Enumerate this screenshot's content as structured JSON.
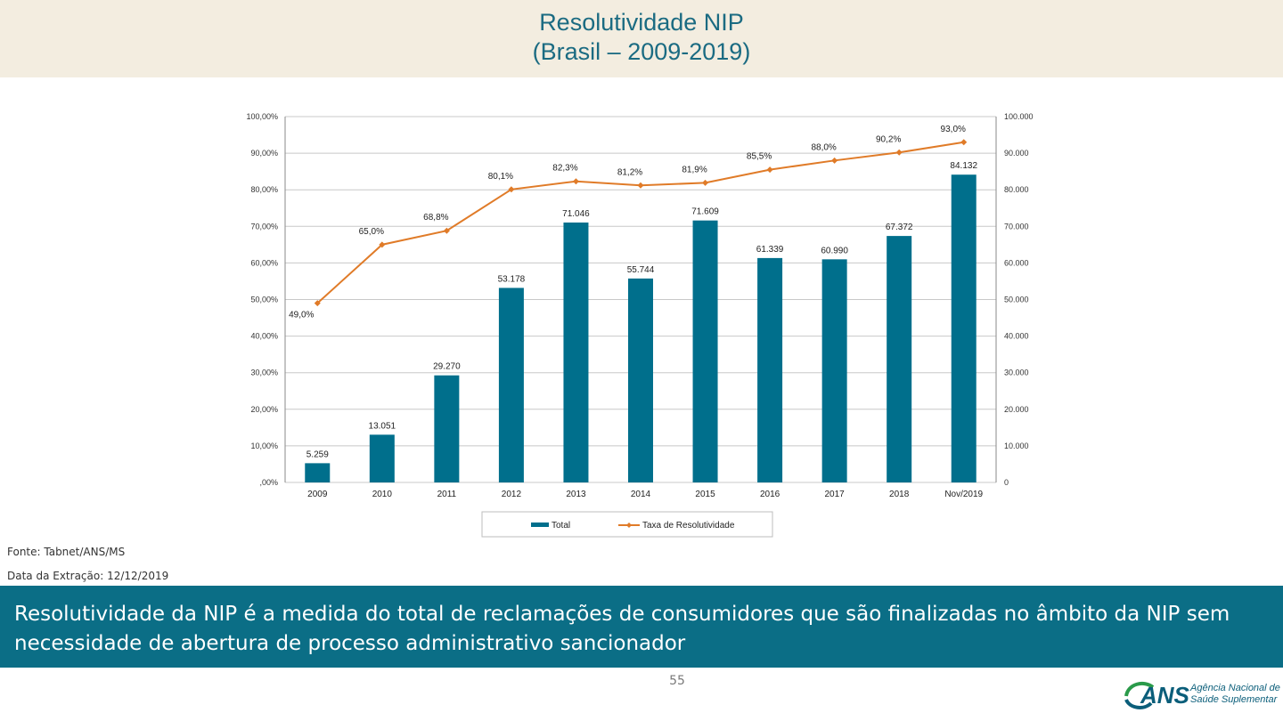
{
  "header": {
    "title_line1": "Resolutividade NIP",
    "title_line2": "(Brasil – 2009-2019)"
  },
  "chart_data": {
    "type": "bar+line",
    "categories": [
      "2009",
      "2010",
      "2011",
      "2012",
      "2013",
      "2014",
      "2015",
      "2016",
      "2017",
      "2018",
      "Nov/2019"
    ],
    "series": [
      {
        "name": "Total",
        "kind": "bar",
        "axis": "right",
        "values": [
          5259,
          13051,
          29270,
          53178,
          71046,
          55744,
          71609,
          61339,
          60990,
          67372,
          84132
        ],
        "labels": [
          "5.259",
          "13.051",
          "29.270",
          "53.178",
          "71.046",
          "55.744",
          "71.609",
          "61.339",
          "60.990",
          "67.372",
          "84.132"
        ]
      },
      {
        "name": "Taxa de Resolutividade",
        "kind": "line",
        "axis": "left",
        "values": [
          49.0,
          65.0,
          68.8,
          80.1,
          82.3,
          81.2,
          81.9,
          85.5,
          88.0,
          90.2,
          93.0
        ],
        "labels": [
          "49,0%",
          "65,0%",
          "68,8%",
          "80,1%",
          "82,3%",
          "81,2%",
          "81,9%",
          "85,5%",
          "88,0%",
          "90,2%",
          "93,0%"
        ]
      }
    ],
    "y_left": {
      "ylim": [
        0,
        100
      ],
      "ticks": [
        ",00%",
        "10,00%",
        "20,00%",
        "30,00%",
        "40,00%",
        "50,00%",
        "60,00%",
        "70,00%",
        "80,00%",
        "90,00%",
        "100,00%"
      ]
    },
    "y_right": {
      "ylim": [
        0,
        100000
      ],
      "ticks": [
        "0",
        "10.000",
        "20.000",
        "30.000",
        "40.000",
        "50.000",
        "60.000",
        "70.000",
        "80.000",
        "90.000",
        "100.000"
      ]
    },
    "legend": [
      "Total",
      "Taxa de Resolutividade"
    ],
    "legend_position": "bottom",
    "grid": true,
    "colors": {
      "bar": "#006f8c",
      "line": "#e07b28",
      "grid": "#c8c8c8"
    }
  },
  "footer": {
    "source": "Fonte: Tabnet/ANS/MS",
    "extraction_date": "Data da Extração: 12/12/2019",
    "note": "Resolutividade da NIP é a medida do total de reclamações de consumidores que são finalizadas no âmbito da NIP sem necessidade de abertura de processo administrativo sancionador",
    "page_number": "55"
  },
  "logo": {
    "wordmark": "ANS",
    "line1": "Agência Nacional de",
    "line2": "Saúde Suplementar"
  }
}
